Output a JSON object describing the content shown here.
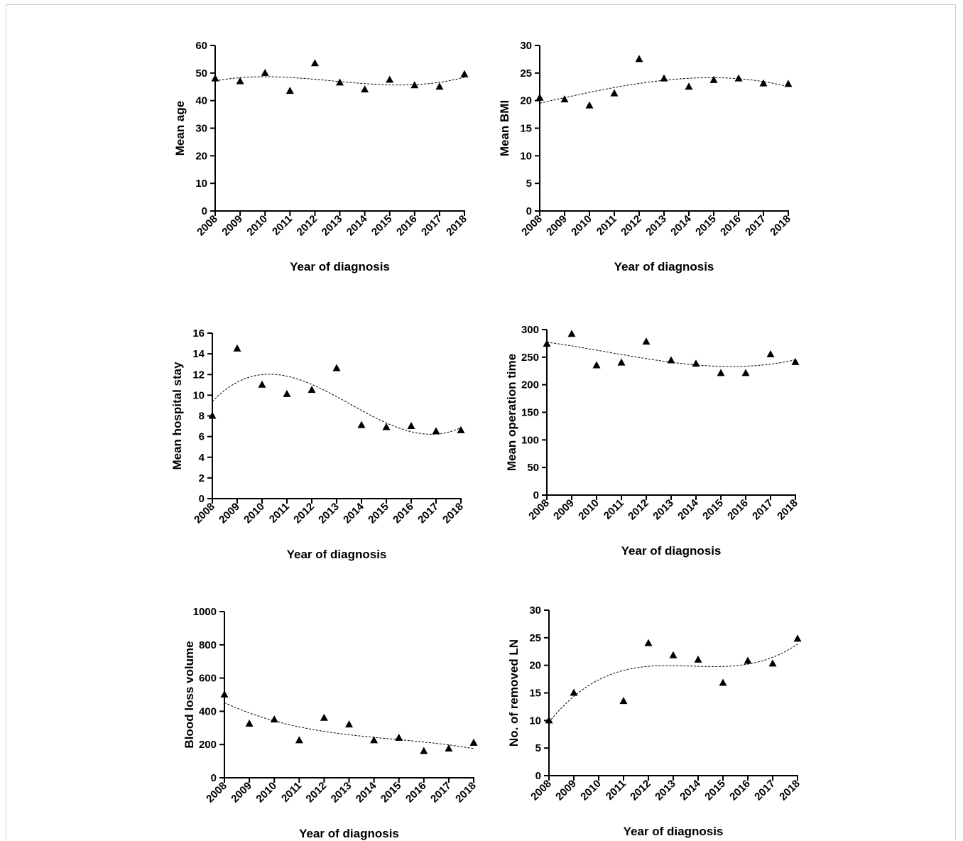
{
  "chart_data": [
    {
      "type": "scatter",
      "title": "",
      "xlabel": "Year of diagnosis",
      "ylabel": "Mean age",
      "x": [
        2008,
        2009,
        2010,
        2011,
        2012,
        2013,
        2014,
        2015,
        2016,
        2017,
        2018
      ],
      "y": [
        48,
        47,
        50,
        43.5,
        53.5,
        46.5,
        44,
        47.5,
        45.5,
        45,
        49.5
      ],
      "trend": "dashed polynomial fit",
      "xlim": [
        2008,
        2018
      ],
      "ylim": [
        0,
        60
      ],
      "xticks": [
        "2008",
        "2009",
        "2010",
        "2011",
        "2012",
        "2013",
        "2014",
        "2015",
        "2016",
        "2017",
        "2018"
      ],
      "yticks": [
        "0",
        "10",
        "20",
        "30",
        "40",
        "50",
        "60"
      ],
      "marker": "triangle"
    },
    {
      "type": "scatter",
      "title": "",
      "xlabel": "Year of diagnosis",
      "ylabel": "Mean BMI",
      "x": [
        2008,
        2009,
        2010,
        2011,
        2012,
        2013,
        2014,
        2015,
        2016,
        2017,
        2018
      ],
      "y": [
        20.5,
        20.2,
        19.1,
        21.3,
        27.5,
        24,
        22.5,
        23.7,
        24,
        23.1,
        23
      ],
      "trend": "dashed polynomial fit",
      "xlim": [
        2008,
        2018
      ],
      "ylim": [
        0,
        30
      ],
      "xticks": [
        "2008",
        "2009",
        "2010",
        "2011",
        "2012",
        "2013",
        "2014",
        "2015",
        "2016",
        "2017",
        "2018"
      ],
      "yticks": [
        "0",
        "5",
        "10",
        "15",
        "20",
        "25",
        "30"
      ],
      "marker": "triangle"
    },
    {
      "type": "scatter",
      "title": "",
      "xlabel": "Year of diagnosis",
      "ylabel": "Mean hospital stay",
      "x": [
        2008,
        2009,
        2010,
        2011,
        2012,
        2013,
        2014,
        2015,
        2016,
        2017,
        2018
      ],
      "y": [
        8,
        14.5,
        11,
        10.1,
        10.5,
        12.6,
        7.1,
        6.9,
        7,
        6.5,
        6.6
      ],
      "trend": "dashed polynomial fit",
      "xlim": [
        2008,
        2018
      ],
      "ylim": [
        0,
        16
      ],
      "xticks": [
        "2008",
        "2009",
        "2010",
        "2011",
        "2012",
        "2013",
        "2014",
        "2015",
        "2016",
        "2017",
        "2018"
      ],
      "yticks": [
        "0",
        "2",
        "4",
        "6",
        "8",
        "10",
        "12",
        "14",
        "16"
      ],
      "marker": "triangle"
    },
    {
      "type": "scatter",
      "title": "",
      "xlabel": "Year of diagnosis",
      "ylabel": "Mean operation time",
      "x": [
        2008,
        2009,
        2010,
        2011,
        2012,
        2013,
        2014,
        2015,
        2016,
        2017,
        2018
      ],
      "y": [
        274,
        292,
        235,
        240,
        278,
        244,
        238,
        221,
        221,
        255,
        241
      ],
      "trend": "dashed polynomial fit",
      "xlim": [
        2008,
        2018
      ],
      "ylim": [
        0,
        300
      ],
      "xticks": [
        "2008",
        "2009",
        "2010",
        "2011",
        "2012",
        "2013",
        "2014",
        "2015",
        "2016",
        "2017",
        "2018"
      ],
      "yticks": [
        "0",
        "50",
        "100",
        "150",
        "200",
        "250",
        "300"
      ],
      "marker": "triangle"
    },
    {
      "type": "scatter",
      "title": "",
      "xlabel": "Year  of diagnosis",
      "ylabel": "Blood loss volume",
      "x": [
        2008,
        2009,
        2010,
        2011,
        2012,
        2013,
        2014,
        2015,
        2016,
        2017,
        2018
      ],
      "y": [
        500,
        325,
        350,
        225,
        360,
        320,
        225,
        240,
        160,
        175,
        210
      ],
      "trend": "dashed polynomial fit",
      "xlim": [
        2008,
        2018
      ],
      "ylim": [
        0,
        1000
      ],
      "xticks": [
        "2008",
        "2009",
        "2010",
        "2011",
        "2012",
        "2013",
        "2014",
        "2015",
        "2016",
        "2017",
        "2018"
      ],
      "yticks": [
        "0",
        "200",
        "400",
        "600",
        "800",
        "1000"
      ],
      "marker": "triangle"
    },
    {
      "type": "scatter",
      "title": "",
      "xlabel": "Year of diagnosis",
      "ylabel": "No. of removed LN",
      "x": [
        2008,
        2009,
        2011,
        2012,
        2013,
        2014,
        2015,
        2016,
        2017,
        2018
      ],
      "y": [
        10,
        15,
        13.5,
        24,
        21.8,
        21,
        16.8,
        20.8,
        20.3,
        24.8
      ],
      "trend": "dashed polynomial fit",
      "xlim": [
        2008,
        2018
      ],
      "ylim": [
        0,
        30
      ],
      "xticks": [
        "2008",
        "2009",
        "2010",
        "2011",
        "2012",
        "2013",
        "2014",
        "2015",
        "2016",
        "2017",
        "2018"
      ],
      "yticks": [
        "0",
        "5",
        "10",
        "15",
        "20",
        "25",
        "30"
      ],
      "marker": "triangle"
    }
  ]
}
